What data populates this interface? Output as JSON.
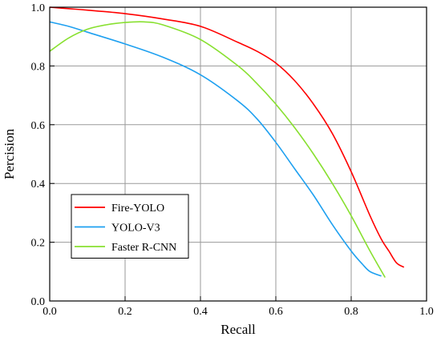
{
  "chart_data": {
    "type": "line",
    "title": "",
    "xlabel": "Recall",
    "ylabel": "Percision",
    "xlim": [
      0.0,
      1.0
    ],
    "ylim": [
      0.0,
      1.0
    ],
    "x_ticks": [
      "0.0",
      "0.2",
      "0.4",
      "0.6",
      "0.8",
      "1.0"
    ],
    "y_ticks": [
      "0.0",
      "0.2",
      "0.4",
      "0.6",
      "0.8",
      "1.0"
    ],
    "grid": true,
    "legend_position": "lower-left",
    "series": [
      {
        "name": "Fire-YOLO",
        "color": "#ff0000",
        "x": [
          0.0,
          0.05,
          0.1,
          0.2,
          0.3,
          0.4,
          0.5,
          0.55,
          0.6,
          0.65,
          0.7,
          0.75,
          0.8,
          0.85,
          0.88,
          0.9,
          0.92,
          0.94
        ],
        "y": [
          1.0,
          0.995,
          0.99,
          0.978,
          0.96,
          0.935,
          0.88,
          0.85,
          0.81,
          0.75,
          0.67,
          0.57,
          0.44,
          0.29,
          0.21,
          0.17,
          0.13,
          0.115
        ]
      },
      {
        "name": "YOLO-V3",
        "color": "#1ea0f0",
        "x": [
          0.0,
          0.05,
          0.1,
          0.2,
          0.3,
          0.4,
          0.5,
          0.55,
          0.6,
          0.65,
          0.7,
          0.75,
          0.8,
          0.83,
          0.85,
          0.88
        ],
        "y": [
          0.95,
          0.935,
          0.915,
          0.875,
          0.83,
          0.77,
          0.68,
          0.62,
          0.54,
          0.45,
          0.36,
          0.26,
          0.17,
          0.125,
          0.1,
          0.085
        ]
      },
      {
        "name": "Faster R-CNN",
        "color": "#88e030",
        "x": [
          0.0,
          0.05,
          0.1,
          0.15,
          0.2,
          0.25,
          0.3,
          0.4,
          0.5,
          0.55,
          0.6,
          0.65,
          0.7,
          0.75,
          0.8,
          0.85,
          0.89
        ],
        "y": [
          0.85,
          0.895,
          0.925,
          0.94,
          0.948,
          0.95,
          0.94,
          0.89,
          0.8,
          0.74,
          0.67,
          0.59,
          0.5,
          0.4,
          0.29,
          0.17,
          0.08
        ]
      }
    ]
  }
}
